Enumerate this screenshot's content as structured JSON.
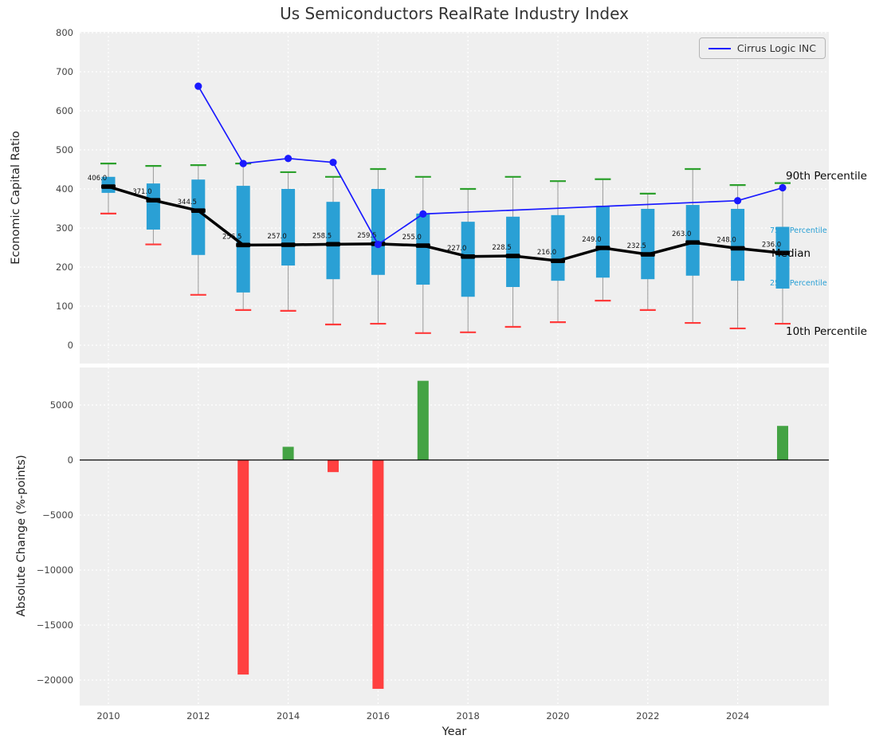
{
  "title": "Us Semiconductors RealRate Industry Index",
  "axes": {
    "top_ylabel": "Economic Capital Ratio",
    "bottom_ylabel": "Absolute Change (%-points)",
    "xlabel": "Year"
  },
  "legend": {
    "series_label": "Cirrus Logic INC"
  },
  "annotations": {
    "p90": "90th Percentile",
    "p75": "75th Percentile",
    "median": "Median",
    "p25": "25th Percentile",
    "p10": "10th Percentile"
  },
  "colors": {
    "box": "#2aa0d5",
    "cap_high": "#2ca02c",
    "cap_low": "#ff3b3b",
    "whisker": "#9a9a9a",
    "median": "#000000",
    "company_line": "#1a1aff",
    "bar_positive": "#44a344",
    "bar_negative": "#ff4040",
    "plot_bg": "#efefef",
    "grid": "#ffffff",
    "tick": "#444444"
  },
  "chart_data": [
    {
      "type": "boxplot+line",
      "title": "Us Semiconductors RealRate Industry Index",
      "ylabel": "Economic Capital Ratio",
      "ylim": [
        0,
        800
      ],
      "yticks": [
        0,
        100,
        200,
        300,
        400,
        500,
        600,
        700,
        800
      ],
      "xticks": [
        2010,
        2012,
        2014,
        2016,
        2018,
        2020,
        2022,
        2024
      ],
      "grid": true,
      "legend_position": "upper right",
      "years": [
        2010,
        2011,
        2012,
        2013,
        2014,
        2015,
        2016,
        2017,
        2018,
        2019,
        2020,
        2021,
        2022,
        2023,
        2024,
        2025
      ],
      "percentile_90": [
        465,
        459,
        461,
        465,
        443,
        431,
        451,
        431,
        400,
        431,
        420,
        425,
        388,
        451,
        410,
        415
      ],
      "percentile_75": [
        431,
        414,
        424,
        408,
        400,
        367,
        400,
        337,
        316,
        329,
        333,
        357,
        349,
        359,
        349,
        303
      ],
      "median": [
        406.0,
        371.0,
        344.5,
        256.5,
        257.0,
        258.5,
        259.5,
        255.0,
        227.0,
        228.5,
        216.0,
        249.0,
        232.5,
        263.0,
        248.0,
        236.0
      ],
      "percentile_25": [
        390,
        296,
        231,
        135,
        204,
        169,
        180,
        155,
        124,
        149,
        165,
        173,
        169,
        178,
        165,
        145
      ],
      "percentile_10": [
        337,
        258,
        129,
        90,
        88,
        53,
        55,
        31,
        33,
        47,
        59,
        114,
        90,
        57,
        43,
        55
      ],
      "series": [
        {
          "name": "Cirrus Logic INC",
          "x": [
            2012,
            2013,
            2014,
            2015,
            2016,
            2017,
            2024,
            2025
          ],
          "y": [
            663,
            465,
            478,
            468,
            258,
            336,
            370,
            403
          ]
        }
      ]
    },
    {
      "type": "bar",
      "ylabel": "Absolute Change (%-points)",
      "xlabel": "Year",
      "yticks": [
        5000,
        0,
        -5000,
        -10000,
        -15000,
        -20000
      ],
      "xticks": [
        2010,
        2012,
        2014,
        2016,
        2018,
        2020,
        2022,
        2024
      ],
      "categories": [
        2010,
        2011,
        2012,
        2013,
        2014,
        2015,
        2016,
        2017,
        2018,
        2019,
        2020,
        2021,
        2022,
        2023,
        2024,
        2025
      ],
      "values": [
        null,
        null,
        null,
        -19500,
        1200,
        -1100,
        -20800,
        7200,
        null,
        null,
        null,
        null,
        null,
        null,
        null,
        3100
      ]
    }
  ]
}
